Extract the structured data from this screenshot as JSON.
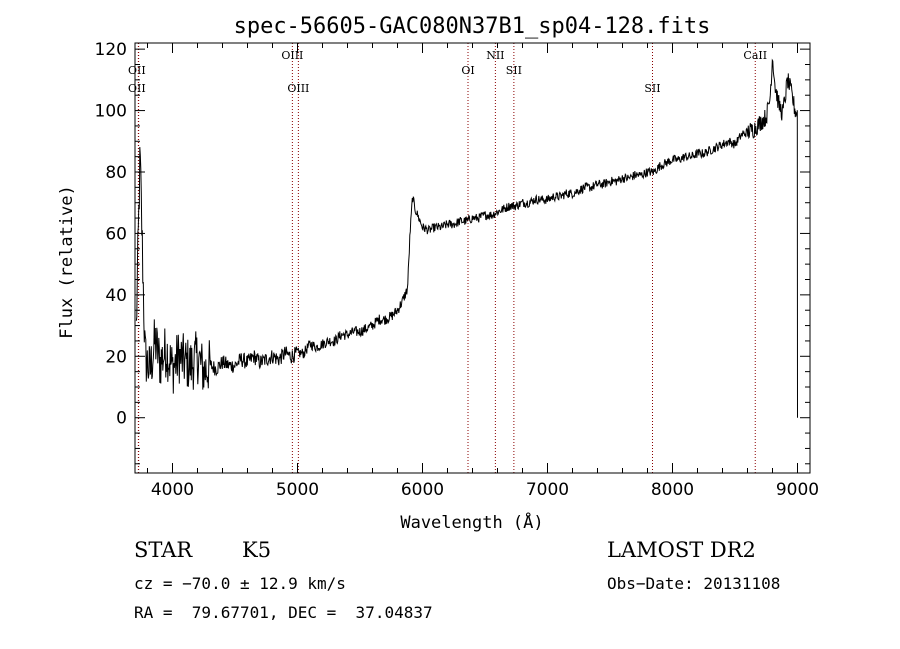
{
  "chart_data": {
    "type": "line",
    "title": "spec-56605-GAC080N37B1_sp04-128.fits",
    "xlabel": "Wavelength (Å)",
    "ylabel": "Flux (relative)",
    "xlim": [
      3700,
      9100
    ],
    "ylim": [
      -18,
      122
    ],
    "xticks": [
      4000,
      5000,
      6000,
      7000,
      8000,
      9000
    ],
    "yticks": [
      0,
      20,
      40,
      60,
      80,
      100,
      120
    ],
    "grid": false,
    "series": [
      {
        "x": [
          3700,
          3740,
          3780,
          3820,
          3860,
          3900,
          3950,
          4000,
          4050,
          4100,
          4150,
          4200,
          4250,
          4300,
          4350,
          4400,
          4450,
          4500,
          4550,
          4600,
          4650,
          4700,
          4750,
          4800,
          4850,
          4900,
          4950,
          5000,
          5050,
          5100,
          5150,
          5200,
          5250,
          5300,
          5350,
          5400,
          5450,
          5500,
          5550,
          5600,
          5650,
          5700,
          5750,
          5800,
          5840,
          5880,
          5900,
          5920,
          5940,
          5960,
          5980,
          6000,
          6050,
          6100,
          6150,
          6200,
          6250,
          6300,
          6350,
          6400,
          6450,
          6500,
          6550,
          6600,
          6650,
          6700,
          6750,
          6800,
          6850,
          6900,
          6950,
          7000,
          7050,
          7100,
          7150,
          7200,
          7250,
          7300,
          7350,
          7400,
          7450,
          7500,
          7550,
          7600,
          7650,
          7700,
          7750,
          7800,
          7850,
          7900,
          7950,
          8000,
          8050,
          8100,
          8150,
          8200,
          8250,
          8300,
          8350,
          8400,
          8450,
          8500,
          8550,
          8600,
          8650,
          8700,
          8750,
          8780,
          8800,
          8820,
          8850,
          8880,
          8900,
          8920,
          8950,
          8980,
          9000
        ],
        "y": [
          10,
          85,
          20,
          15,
          25,
          18,
          22,
          16,
          20,
          18,
          17,
          20,
          15,
          17,
          16,
          18,
          17,
          17,
          19,
          18,
          20,
          18,
          19,
          20,
          19,
          21,
          20,
          21,
          21,
          24,
          23,
          24,
          25,
          25,
          27,
          27,
          28,
          28,
          29,
          30,
          32,
          32,
          33,
          35,
          38,
          42,
          60,
          72,
          68,
          66,
          64,
          62,
          61,
          62,
          62,
          63,
          63,
          64,
          64,
          65,
          65,
          66,
          66,
          67,
          68,
          69,
          69,
          70,
          70,
          71,
          71,
          71,
          72,
          72,
          73,
          73,
          74,
          75,
          75,
          76,
          76,
          77,
          77,
          78,
          78,
          79,
          79,
          80,
          80,
          82,
          83,
          84,
          84,
          85,
          85,
          86,
          86,
          87,
          88,
          89,
          90,
          89,
          92,
          93,
          94,
          96,
          98,
          104,
          118,
          108,
          102,
          99,
          104,
          110,
          106,
          100,
          99
        ]
      }
    ],
    "lines": [
      {
        "label": "OII",
        "x": 3727
      },
      {
        "label": "OII",
        "x": 3729
      },
      {
        "label": "OIII",
        "x": 4959
      },
      {
        "label": "OIII",
        "x": 5007
      },
      {
        "label": "OI",
        "x": 6364
      },
      {
        "label": "NII",
        "x": 6583
      },
      {
        "label": "SII",
        "x": 6731
      },
      {
        "label": "SII",
        "x": 7840
      },
      {
        "label": "CaII",
        "x": 8662
      }
    ],
    "line_color": "#8b0000"
  },
  "info": {
    "class": "STAR",
    "subclass": "K5",
    "survey": "LAMOST DR2",
    "cz": "cz = −70.0 ± 12.9 km/s",
    "obs_date": "Obs−Date: 20131108",
    "radec": "RA =  79.67701, DEC =  37.04837"
  }
}
